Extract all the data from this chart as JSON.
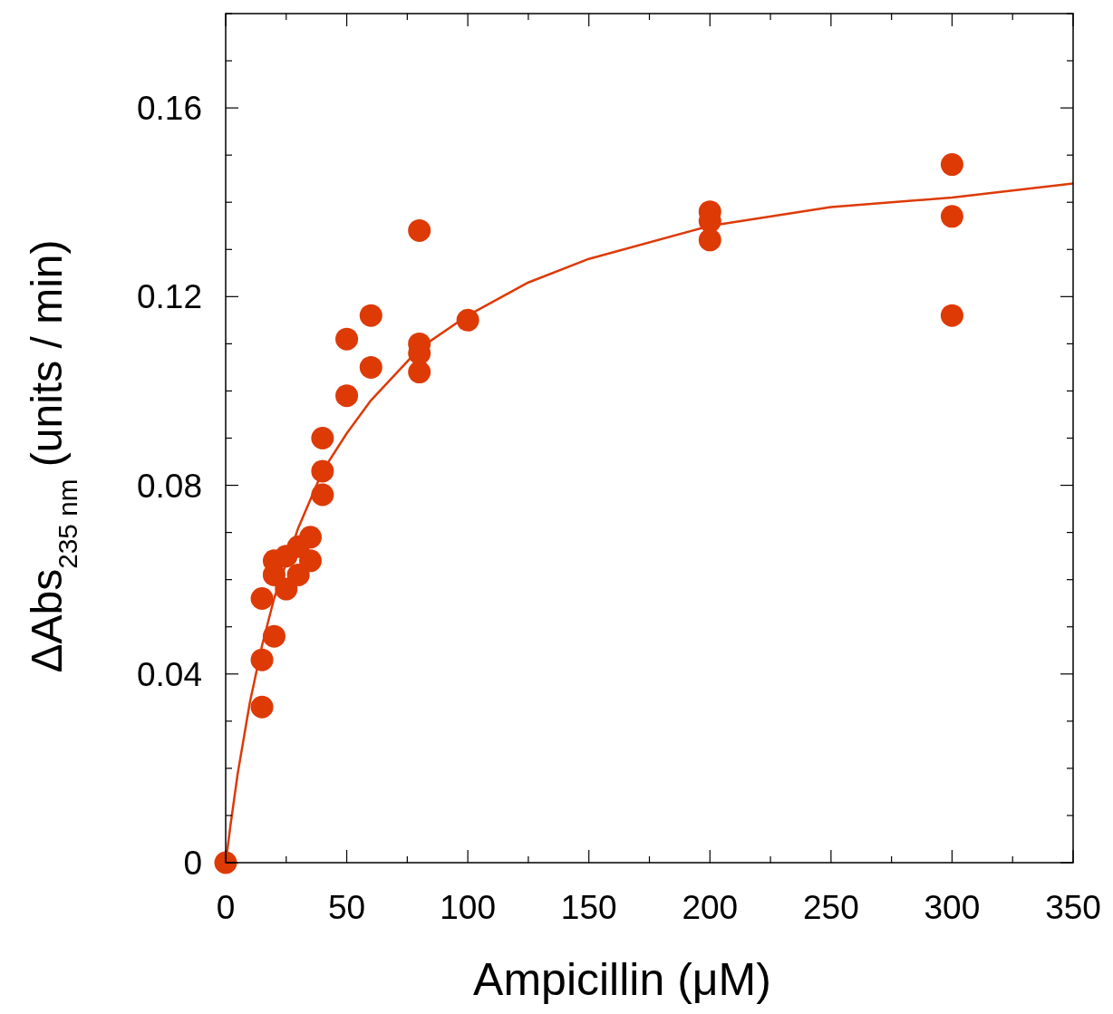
{
  "chart_data": {
    "type": "scatter",
    "xlabel": "Ampicillin (μM)",
    "ylabel": "ΔAbs$_{235 nm}$ (units / min)",
    "xlim": [
      0,
      350
    ],
    "ylim": [
      0,
      0.18
    ],
    "xticks": [
      0,
      {
        "value": 25,
        "label": null
      },
      50,
      {
        "value": 75,
        "label": null
      },
      100,
      {
        "value": 125,
        "label": null
      },
      150,
      {
        "value": 175,
        "label": null
      },
      200,
      {
        "value": 225,
        "label": null
      },
      250,
      {
        "value": 275,
        "label": null
      },
      300,
      {
        "value": 325,
        "label": null
      },
      350
    ],
    "yticks": [
      0,
      {
        "value": 0.01,
        "label": null
      },
      {
        "value": 0.02,
        "label": null
      },
      {
        "value": 0.03,
        "label": null
      },
      0.04,
      {
        "value": 0.05,
        "label": null
      },
      {
        "value": 0.06,
        "label": null
      },
      {
        "value": 0.07,
        "label": null
      },
      0.08,
      {
        "value": 0.09,
        "label": null
      },
      {
        "value": 0.1,
        "label": null
      },
      {
        "value": 0.11,
        "label": null
      },
      0.12,
      {
        "value": 0.13,
        "label": null
      },
      {
        "value": 0.14,
        "label": null
      },
      {
        "value": 0.15,
        "label": null
      },
      0.16,
      {
        "value": 0.17,
        "label": null
      },
      {
        "value": 0.18,
        "label": null
      }
    ],
    "grid": false,
    "series": [
      {
        "type": "line",
        "color": "#dd3a06",
        "marker": "none",
        "line_style": "solid",
        "x": [
          0,
          2,
          5,
          10,
          15,
          20,
          30,
          40,
          50,
          60,
          80,
          100,
          125,
          150,
          200,
          250,
          300,
          350
        ],
        "values": [
          0,
          0.008,
          0.019,
          0.034,
          0.046,
          0.056,
          0.071,
          0.083,
          0.091,
          0.098,
          0.109,
          0.116,
          0.123,
          0.128,
          0.135,
          0.139,
          0.141,
          0.144
        ]
      },
      {
        "color": "#dd3a06",
        "marker": "circle",
        "x": [
          0,
          15,
          15,
          15,
          20,
          20,
          20,
          25,
          25,
          30,
          30,
          35,
          35,
          40,
          40,
          40,
          50,
          50,
          60,
          60,
          80,
          80,
          80,
          80,
          100,
          200,
          200,
          200,
          300,
          300,
          300
        ],
        "values": [
          0,
          0.033,
          0.043,
          0.056,
          0.048,
          0.061,
          0.064,
          0.058,
          0.065,
          0.061,
          0.067,
          0.064,
          0.069,
          0.078,
          0.083,
          0.09,
          0.099,
          0.111,
          0.105,
          0.116,
          0.134,
          0.11,
          0.108,
          0.104,
          0.115,
          0.138,
          0.136,
          0.132,
          0.148,
          0.137,
          0.116
        ]
      }
    ]
  }
}
